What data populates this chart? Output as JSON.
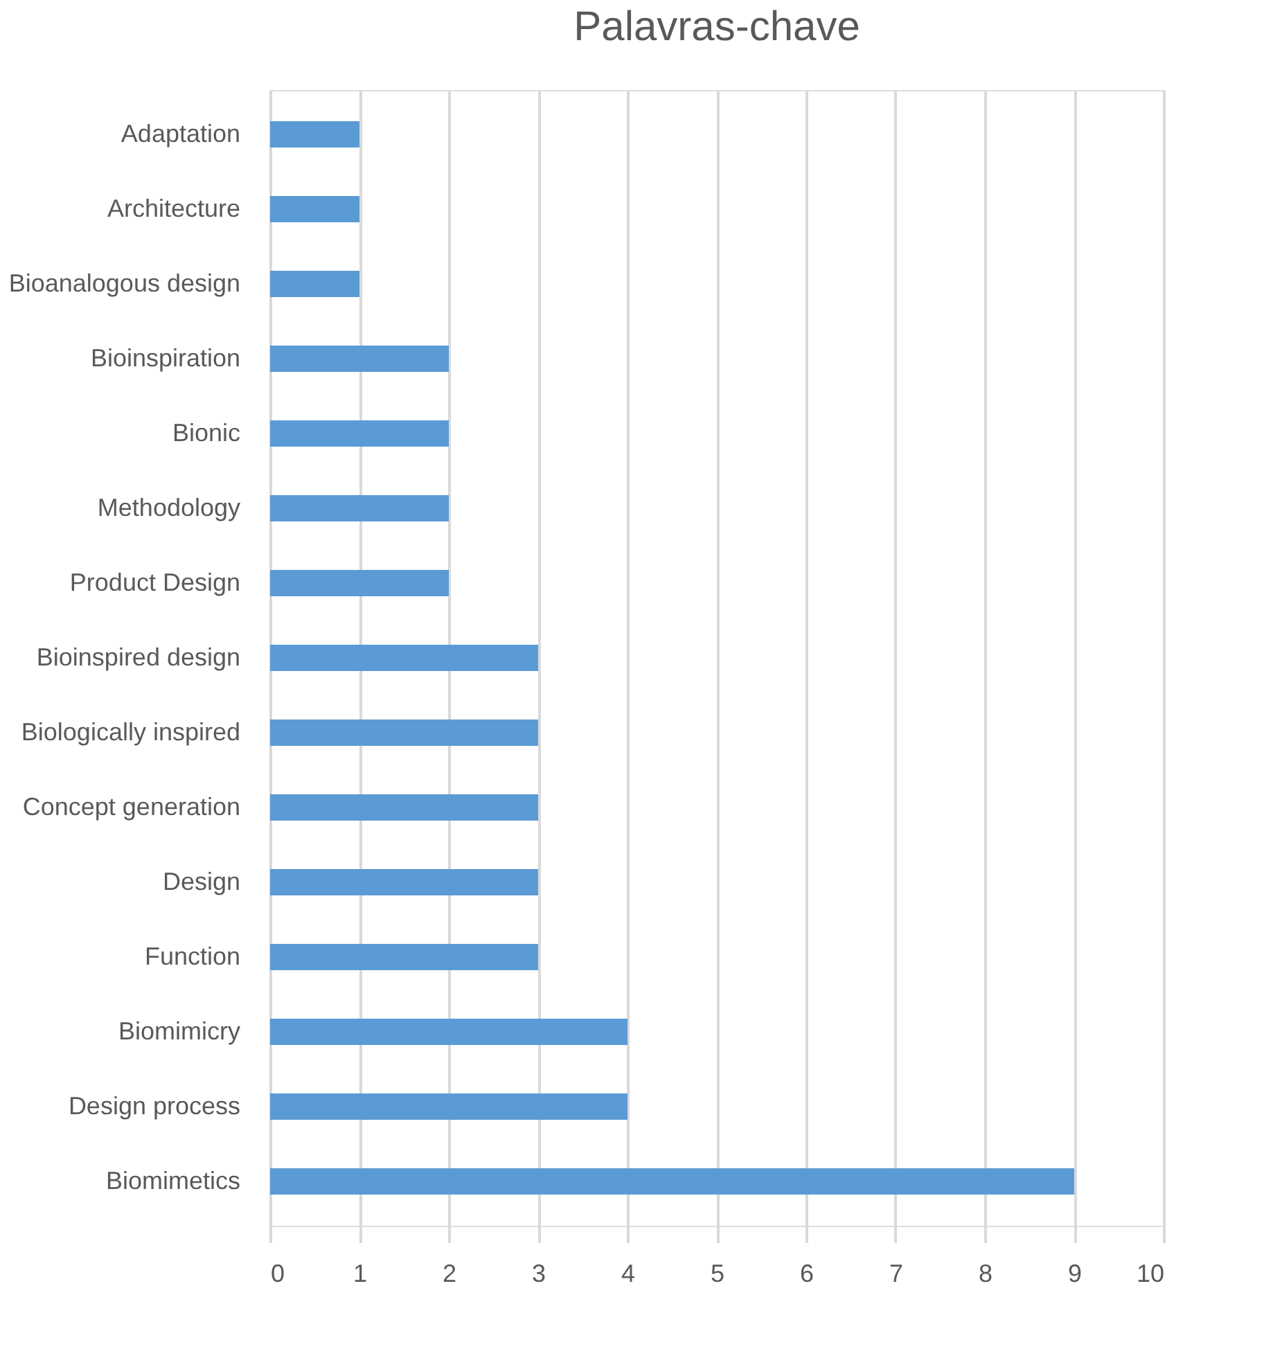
{
  "chart_data": {
    "type": "bar",
    "orientation": "horizontal",
    "title": "Palavras-chave",
    "categories": [
      "Adaptation",
      "Architecture",
      "Bioanalogous design",
      "Bioinspiration",
      "Bionic",
      "Methodology",
      "Product Design",
      "Bioinspired design",
      "Biologically inspired",
      "Concept generation",
      "Design",
      "Function",
      "Biomimicry",
      "Design process",
      "Biomimetics"
    ],
    "values": [
      1,
      1,
      1,
      2,
      2,
      2,
      2,
      3,
      3,
      3,
      3,
      3,
      4,
      4,
      9
    ],
    "color": "#5b9bd5",
    "xlim": [
      0,
      10
    ],
    "xticks": [
      0,
      1,
      2,
      3,
      4,
      5,
      6,
      7,
      8,
      9,
      10
    ],
    "grid": "x"
  }
}
